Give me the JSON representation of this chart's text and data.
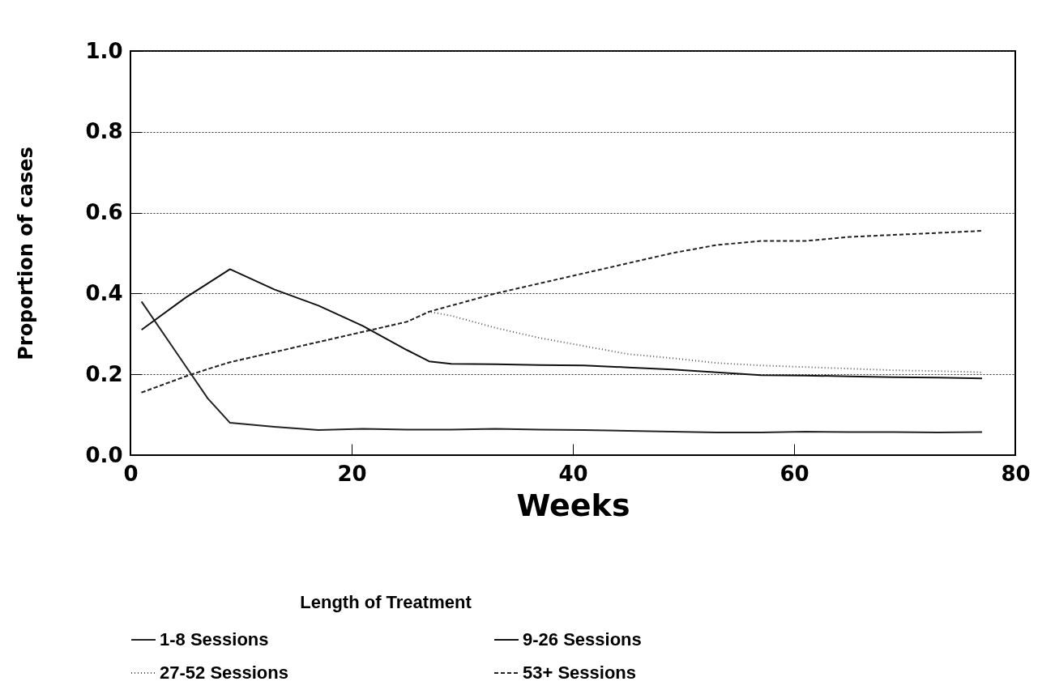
{
  "chart_data": {
    "type": "line",
    "xlabel": "Weeks",
    "ylabel": "Proportion of cases",
    "legend_title": "Length of Treatment",
    "x": [
      1,
      5,
      7,
      9,
      13,
      17,
      21,
      25,
      27,
      29,
      33,
      37,
      41,
      45,
      49,
      53,
      57,
      61,
      65,
      69,
      73,
      77
    ],
    "xlim": [
      0,
      80
    ],
    "xticks": [
      0,
      20,
      40,
      60,
      80
    ],
    "ylim": [
      0,
      1
    ],
    "yticks": [
      {
        "value": 0,
        "label": "0.0"
      },
      0.2,
      0.4,
      0.6,
      0.8,
      {
        "value": 1,
        "label": "1.0"
      }
    ],
    "grid": "y",
    "legend": "bottom",
    "marker": "none",
    "series": [
      {
        "name": "1-8 Sessions",
        "color": "#222222",
        "line_style": "solid",
        "values": [
          0.38,
          0.22,
          0.14,
          0.08,
          0.07,
          0.062,
          0.065,
          0.063,
          0.063,
          0.063,
          0.065,
          0.063,
          0.062,
          0.06,
          0.058,
          0.056,
          0.056,
          0.058,
          0.057,
          0.057,
          0.056,
          0.057
        ]
      },
      {
        "name": "9-26 Sessions",
        "color": "#111111",
        "line_style": "solid",
        "values": [
          0.31,
          0.39,
          0.425,
          0.46,
          0.41,
          0.37,
          0.32,
          0.26,
          0.232,
          0.226,
          0.225,
          0.223,
          0.222,
          0.217,
          0.212,
          0.205,
          0.198,
          0.197,
          0.195,
          0.193,
          0.192,
          0.19
        ]
      },
      {
        "name": "27-52 Sessions",
        "color": "#555555",
        "line_style": "dotted",
        "values": [
          0.155,
          0.195,
          0.213,
          0.23,
          0.255,
          0.28,
          0.305,
          0.33,
          0.355,
          0.345,
          0.315,
          0.29,
          0.27,
          0.25,
          0.24,
          0.228,
          0.222,
          0.218,
          0.214,
          0.21,
          0.208,
          0.205
        ]
      },
      {
        "name": "53+ Sessions",
        "color": "#222222",
        "line_style": "dashed",
        "values": [
          0.155,
          0.195,
          0.213,
          0.23,
          0.255,
          0.28,
          0.305,
          0.33,
          0.355,
          0.37,
          0.4,
          0.425,
          0.45,
          0.475,
          0.5,
          0.52,
          0.53,
          0.53,
          0.54,
          0.545,
          0.55,
          0.555
        ]
      }
    ]
  }
}
